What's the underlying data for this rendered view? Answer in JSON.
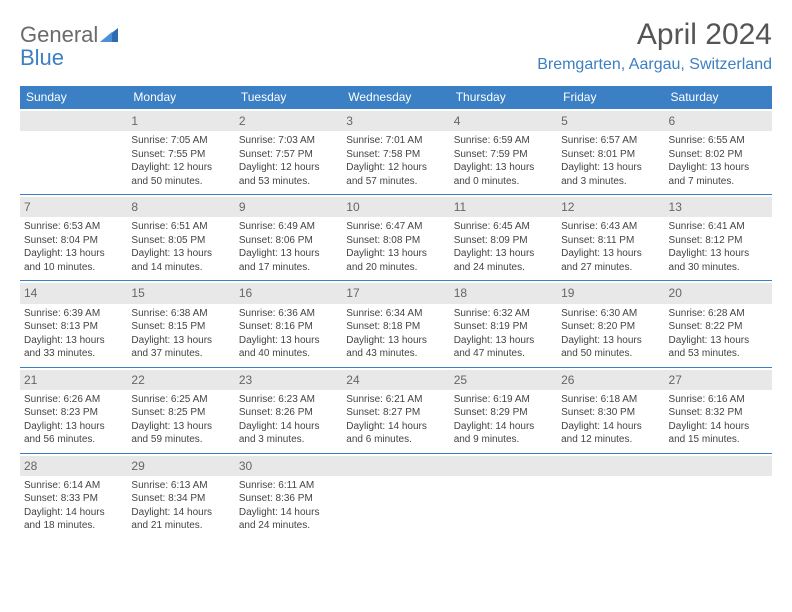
{
  "logo": {
    "text1": "General",
    "text2": "Blue"
  },
  "title": "April 2024",
  "location": "Bremgarten, Aargau, Switzerland",
  "colors": {
    "header_bg": "#3b7fc4",
    "header_text": "#ffffff",
    "daynum_bg": "#e8e8e8",
    "border": "#3b7fc4",
    "logo_gray": "#6b6b6b",
    "logo_blue": "#3b7fc4"
  },
  "typography": {
    "title_fontsize": 30,
    "location_fontsize": 16,
    "header_fontsize": 12,
    "cell_fontsize": 10,
    "daynum_fontsize": 12
  },
  "weekdays": [
    "Sunday",
    "Monday",
    "Tuesday",
    "Wednesday",
    "Thursday",
    "Friday",
    "Saturday"
  ],
  "weeks": [
    [
      null,
      {
        "n": "1",
        "l1": "Sunrise: 7:05 AM",
        "l2": "Sunset: 7:55 PM",
        "l3": "Daylight: 12 hours",
        "l4": "and 50 minutes."
      },
      {
        "n": "2",
        "l1": "Sunrise: 7:03 AM",
        "l2": "Sunset: 7:57 PM",
        "l3": "Daylight: 12 hours",
        "l4": "and 53 minutes."
      },
      {
        "n": "3",
        "l1": "Sunrise: 7:01 AM",
        "l2": "Sunset: 7:58 PM",
        "l3": "Daylight: 12 hours",
        "l4": "and 57 minutes."
      },
      {
        "n": "4",
        "l1": "Sunrise: 6:59 AM",
        "l2": "Sunset: 7:59 PM",
        "l3": "Daylight: 13 hours",
        "l4": "and 0 minutes."
      },
      {
        "n": "5",
        "l1": "Sunrise: 6:57 AM",
        "l2": "Sunset: 8:01 PM",
        "l3": "Daylight: 13 hours",
        "l4": "and 3 minutes."
      },
      {
        "n": "6",
        "l1": "Sunrise: 6:55 AM",
        "l2": "Sunset: 8:02 PM",
        "l3": "Daylight: 13 hours",
        "l4": "and 7 minutes."
      }
    ],
    [
      {
        "n": "7",
        "l1": "Sunrise: 6:53 AM",
        "l2": "Sunset: 8:04 PM",
        "l3": "Daylight: 13 hours",
        "l4": "and 10 minutes."
      },
      {
        "n": "8",
        "l1": "Sunrise: 6:51 AM",
        "l2": "Sunset: 8:05 PM",
        "l3": "Daylight: 13 hours",
        "l4": "and 14 minutes."
      },
      {
        "n": "9",
        "l1": "Sunrise: 6:49 AM",
        "l2": "Sunset: 8:06 PM",
        "l3": "Daylight: 13 hours",
        "l4": "and 17 minutes."
      },
      {
        "n": "10",
        "l1": "Sunrise: 6:47 AM",
        "l2": "Sunset: 8:08 PM",
        "l3": "Daylight: 13 hours",
        "l4": "and 20 minutes."
      },
      {
        "n": "11",
        "l1": "Sunrise: 6:45 AM",
        "l2": "Sunset: 8:09 PM",
        "l3": "Daylight: 13 hours",
        "l4": "and 24 minutes."
      },
      {
        "n": "12",
        "l1": "Sunrise: 6:43 AM",
        "l2": "Sunset: 8:11 PM",
        "l3": "Daylight: 13 hours",
        "l4": "and 27 minutes."
      },
      {
        "n": "13",
        "l1": "Sunrise: 6:41 AM",
        "l2": "Sunset: 8:12 PM",
        "l3": "Daylight: 13 hours",
        "l4": "and 30 minutes."
      }
    ],
    [
      {
        "n": "14",
        "l1": "Sunrise: 6:39 AM",
        "l2": "Sunset: 8:13 PM",
        "l3": "Daylight: 13 hours",
        "l4": "and 33 minutes."
      },
      {
        "n": "15",
        "l1": "Sunrise: 6:38 AM",
        "l2": "Sunset: 8:15 PM",
        "l3": "Daylight: 13 hours",
        "l4": "and 37 minutes."
      },
      {
        "n": "16",
        "l1": "Sunrise: 6:36 AM",
        "l2": "Sunset: 8:16 PM",
        "l3": "Daylight: 13 hours",
        "l4": "and 40 minutes."
      },
      {
        "n": "17",
        "l1": "Sunrise: 6:34 AM",
        "l2": "Sunset: 8:18 PM",
        "l3": "Daylight: 13 hours",
        "l4": "and 43 minutes."
      },
      {
        "n": "18",
        "l1": "Sunrise: 6:32 AM",
        "l2": "Sunset: 8:19 PM",
        "l3": "Daylight: 13 hours",
        "l4": "and 47 minutes."
      },
      {
        "n": "19",
        "l1": "Sunrise: 6:30 AM",
        "l2": "Sunset: 8:20 PM",
        "l3": "Daylight: 13 hours",
        "l4": "and 50 minutes."
      },
      {
        "n": "20",
        "l1": "Sunrise: 6:28 AM",
        "l2": "Sunset: 8:22 PM",
        "l3": "Daylight: 13 hours",
        "l4": "and 53 minutes."
      }
    ],
    [
      {
        "n": "21",
        "l1": "Sunrise: 6:26 AM",
        "l2": "Sunset: 8:23 PM",
        "l3": "Daylight: 13 hours",
        "l4": "and 56 minutes."
      },
      {
        "n": "22",
        "l1": "Sunrise: 6:25 AM",
        "l2": "Sunset: 8:25 PM",
        "l3": "Daylight: 13 hours",
        "l4": "and 59 minutes."
      },
      {
        "n": "23",
        "l1": "Sunrise: 6:23 AM",
        "l2": "Sunset: 8:26 PM",
        "l3": "Daylight: 14 hours",
        "l4": "and 3 minutes."
      },
      {
        "n": "24",
        "l1": "Sunrise: 6:21 AM",
        "l2": "Sunset: 8:27 PM",
        "l3": "Daylight: 14 hours",
        "l4": "and 6 minutes."
      },
      {
        "n": "25",
        "l1": "Sunrise: 6:19 AM",
        "l2": "Sunset: 8:29 PM",
        "l3": "Daylight: 14 hours",
        "l4": "and 9 minutes."
      },
      {
        "n": "26",
        "l1": "Sunrise: 6:18 AM",
        "l2": "Sunset: 8:30 PM",
        "l3": "Daylight: 14 hours",
        "l4": "and 12 minutes."
      },
      {
        "n": "27",
        "l1": "Sunrise: 6:16 AM",
        "l2": "Sunset: 8:32 PM",
        "l3": "Daylight: 14 hours",
        "l4": "and 15 minutes."
      }
    ],
    [
      {
        "n": "28",
        "l1": "Sunrise: 6:14 AM",
        "l2": "Sunset: 8:33 PM",
        "l3": "Daylight: 14 hours",
        "l4": "and 18 minutes."
      },
      {
        "n": "29",
        "l1": "Sunrise: 6:13 AM",
        "l2": "Sunset: 8:34 PM",
        "l3": "Daylight: 14 hours",
        "l4": "and 21 minutes."
      },
      {
        "n": "30",
        "l1": "Sunrise: 6:11 AM",
        "l2": "Sunset: 8:36 PM",
        "l3": "Daylight: 14 hours",
        "l4": "and 24 minutes."
      },
      null,
      null,
      null,
      null
    ]
  ]
}
